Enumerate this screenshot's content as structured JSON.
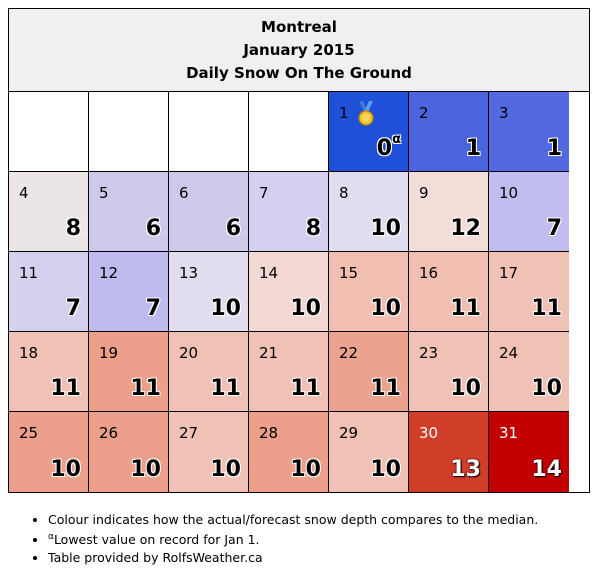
{
  "header": {
    "city": "Montreal",
    "month": "January 2015",
    "subtitle": "Daily Snow On The Ground"
  },
  "blank_cells": 4,
  "days": [
    {
      "day": "1",
      "value": "0",
      "sup": "α",
      "color": "#2150d8",
      "medal": true
    },
    {
      "day": "2",
      "value": "1",
      "color": "#4c63de"
    },
    {
      "day": "3",
      "value": "1",
      "color": "#5468e0"
    },
    {
      "day": "4",
      "value": "8",
      "color": "#ece5e6"
    },
    {
      "day": "5",
      "value": "6",
      "color": "#cec9eb"
    },
    {
      "day": "6",
      "value": "6",
      "color": "#cec9eb"
    },
    {
      "day": "7",
      "value": "8",
      "color": "#d4cfef"
    },
    {
      "day": "8",
      "value": "10",
      "color": "#e1ddee"
    },
    {
      "day": "9",
      "value": "12",
      "color": "#f3ddd8"
    },
    {
      "day": "10",
      "value": "7",
      "color": "#c1bdee"
    },
    {
      "day": "11",
      "value": "7",
      "color": "#d4d0ee"
    },
    {
      "day": "12",
      "value": "7",
      "color": "#bfbbee"
    },
    {
      "day": "13",
      "value": "10",
      "color": "#e1ddee"
    },
    {
      "day": "14",
      "value": "10",
      "color": "#f2d7d2"
    },
    {
      "day": "15",
      "value": "10",
      "color": "#f0bfb2"
    },
    {
      "day": "16",
      "value": "11",
      "color": "#f0bfb2"
    },
    {
      "day": "17",
      "value": "11",
      "color": "#f0c2b6"
    },
    {
      "day": "18",
      "value": "11",
      "color": "#f0c2b6"
    },
    {
      "day": "19",
      "value": "11",
      "color": "#ec9f8a"
    },
    {
      "day": "20",
      "value": "11",
      "color": "#f0c2b6"
    },
    {
      "day": "21",
      "value": "11",
      "color": "#f0c2b6"
    },
    {
      "day": "22",
      "value": "11",
      "color": "#eba28e"
    },
    {
      "day": "23",
      "value": "10",
      "color": "#f0c2b6"
    },
    {
      "day": "24",
      "value": "10",
      "color": "#f0c2b6"
    },
    {
      "day": "25",
      "value": "10",
      "color": "#eca08b"
    },
    {
      "day": "26",
      "value": "10",
      "color": "#eca08b"
    },
    {
      "day": "27",
      "value": "10",
      "color": "#f0c2b6"
    },
    {
      "day": "28",
      "value": "10",
      "color": "#eca08b"
    },
    {
      "day": "29",
      "value": "10",
      "color": "#f0c2b6"
    },
    {
      "day": "30",
      "value": "13",
      "color": "#d03e2a",
      "dark": true
    },
    {
      "day": "31",
      "value": "14",
      "color": "#c20000",
      "dark": true
    }
  ],
  "notes": {
    "colour": "Colour indicates how the actual/forecast snow depth compares to the median.",
    "record_sup": "α",
    "record": "Lowest value on record for Jan 1.",
    "provider": "Table provided by RolfsWeather.ca"
  }
}
